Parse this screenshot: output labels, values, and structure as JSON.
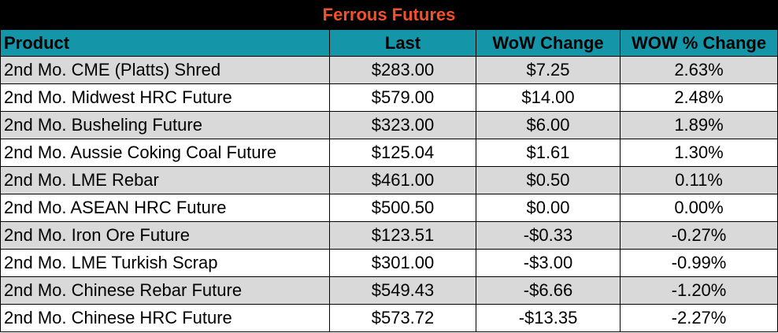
{
  "title": "Ferrous Futures",
  "colors": {
    "title_bg": "#000000",
    "title_text": "#f2512a",
    "header_bg": "#1496a8",
    "shaded_row": "#d9d9d9",
    "plain_row": "#ffffff"
  },
  "columns": [
    "Product",
    "Last",
    "WoW Change",
    "WOW % Change"
  ],
  "rows": [
    {
      "product": "2nd Mo. CME (Platts) Shred",
      "last": "$283.00",
      "wow": "$7.25",
      "pct": "2.63%"
    },
    {
      "product": "2nd Mo. Midwest HRC Future",
      "last": "$579.00",
      "wow": "$14.00",
      "pct": "2.48%"
    },
    {
      "product": "2nd Mo. Busheling Future",
      "last": "$323.00",
      "wow": "$6.00",
      "pct": "1.89%"
    },
    {
      "product": "2nd Mo. Aussie Coking Coal Future",
      "last": "$125.04",
      "wow": "$1.61",
      "pct": "1.30%"
    },
    {
      "product": "2nd Mo. LME Rebar",
      "last": "$461.00",
      "wow": "$0.50",
      "pct": "0.11%"
    },
    {
      "product": "2nd Mo. ASEAN HRC Future",
      "last": "$500.50",
      "wow": "$0.00",
      "pct": "0.00%"
    },
    {
      "product": "2nd Mo. Iron Ore Future",
      "last": "$123.51",
      "wow": "-$0.33",
      "pct": "-0.27%"
    },
    {
      "product": "2nd Mo. LME Turkish Scrap",
      "last": "$301.00",
      "wow": "-$3.00",
      "pct": "-0.99%"
    },
    {
      "product": "2nd Mo. Chinese Rebar Future",
      "last": "$549.43",
      "wow": "-$6.66",
      "pct": "-1.20%"
    },
    {
      "product": "2nd Mo. Chinese HRC Future",
      "last": "$573.72",
      "wow": "-$13.35",
      "pct": "-2.27%"
    }
  ]
}
